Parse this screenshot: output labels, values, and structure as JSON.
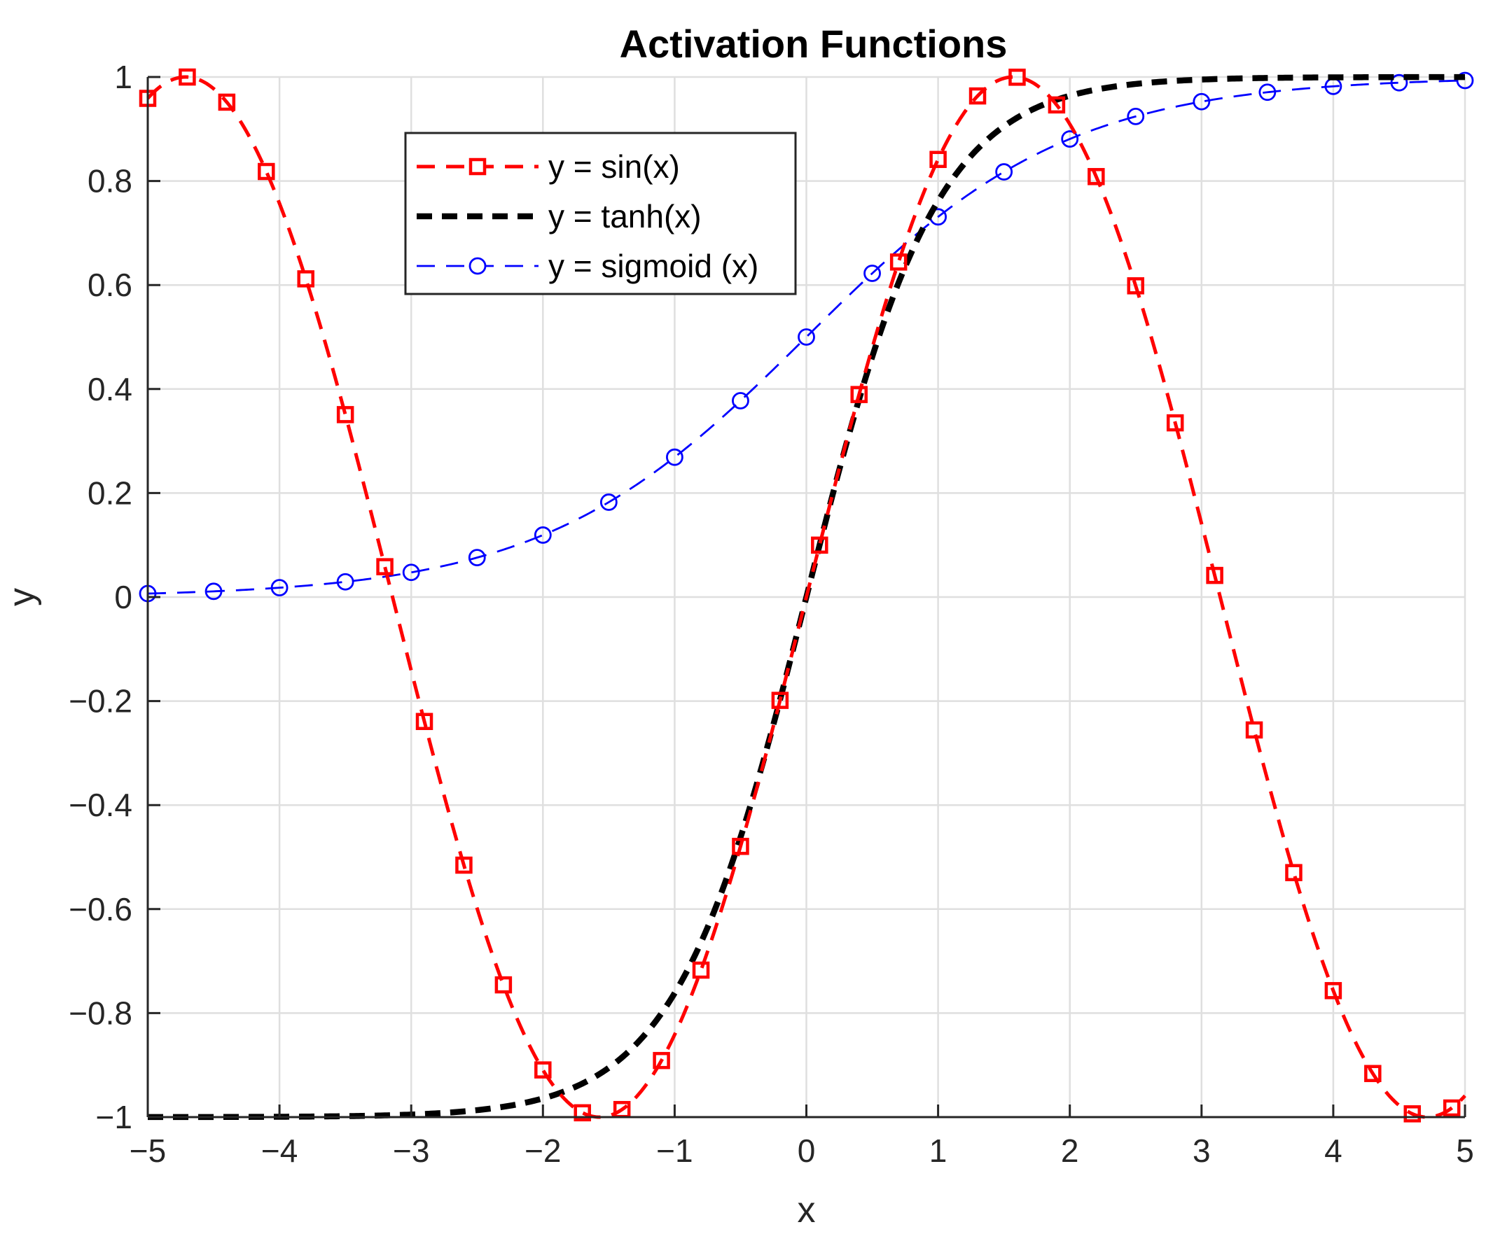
{
  "chart_data": {
    "type": "line",
    "title": "Activation Functions",
    "xlabel": "x",
    "ylabel": "y",
    "xlim": [
      -5,
      5
    ],
    "ylim": [
      -1,
      1
    ],
    "grid": true,
    "legend_position": "upper-left-center",
    "xticks": [
      -5,
      -4,
      -3,
      -2,
      -1,
      0,
      1,
      2,
      3,
      4,
      5
    ],
    "xtick_labels": [
      "−5",
      "−4",
      "−3",
      "−2",
      "−1",
      "0",
      "1",
      "2",
      "3",
      "4",
      "5"
    ],
    "yticks": [
      1,
      0.8,
      0.6,
      0.4,
      0.2,
      0,
      -0.2,
      -0.4,
      -0.6,
      -0.8,
      -1
    ],
    "ytick_labels": [
      "1",
      "0.8",
      "0.6",
      "0.4",
      "0.2",
      "0",
      "−0.2",
      "−0.4",
      "−0.6",
      "−0.8",
      "−1"
    ],
    "series": [
      {
        "name": "y = sin(x)",
        "color": "#ff0000",
        "linestyle": "dashed",
        "marker": "square",
        "formula": "sin(x)",
        "marker_x": [
          -5,
          -4.7,
          -4.4,
          -4.1,
          -3.8,
          -3.5,
          -3.2,
          -2.9,
          -2.6,
          -2.3,
          -2.0,
          -1.7,
          -1.4,
          -1.1,
          -0.8,
          -0.5,
          -0.2,
          0.1,
          0.4,
          0.7,
          1.0,
          1.3,
          1.6,
          1.9,
          2.2,
          2.5,
          2.8,
          3.1,
          3.4,
          3.7,
          4.0,
          4.3,
          4.6,
          4.9
        ]
      },
      {
        "name": "y = tanh(x)",
        "color": "#000000",
        "linestyle": "dashed",
        "marker": "none",
        "formula": "tanh(x)",
        "marker_x": []
      },
      {
        "name": "y = sigmoid (x)",
        "color": "#0000ff",
        "linestyle": "dashed",
        "marker": "circle",
        "formula": "sigmoid(x)",
        "marker_x": [
          -5,
          -4.5,
          -4,
          -3.5,
          -3,
          -2.5,
          -2,
          -1.5,
          -1,
          -0.5,
          0,
          0.5,
          1,
          1.5,
          2,
          2.5,
          3,
          3.5,
          4,
          4.5,
          5
        ]
      }
    ]
  }
}
